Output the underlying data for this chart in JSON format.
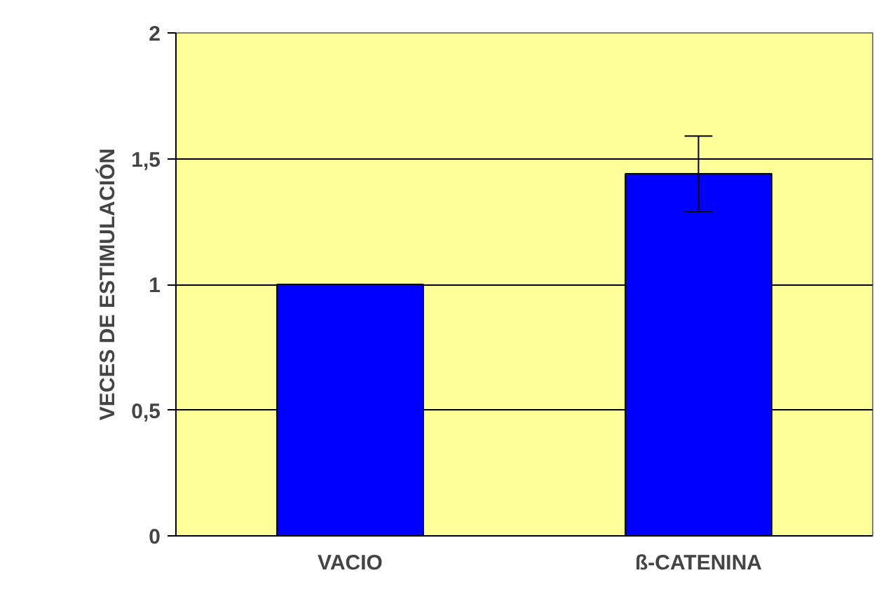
{
  "chart_data": {
    "type": "bar",
    "ylabel": "VECES DE ESTIMULACIÓN",
    "categories": [
      "VACIO",
      "ß-CATENINA"
    ],
    "values": [
      1,
      1.44
    ],
    "errors": [
      null,
      0.15
    ],
    "color": "#0000ff",
    "ylim": [
      0,
      2
    ],
    "yticks": [
      0,
      {
        "value": 0.5,
        "label": "0,5"
      },
      1,
      {
        "value": 1.5,
        "label": "1,5"
      },
      2
    ],
    "grid": "y"
  }
}
